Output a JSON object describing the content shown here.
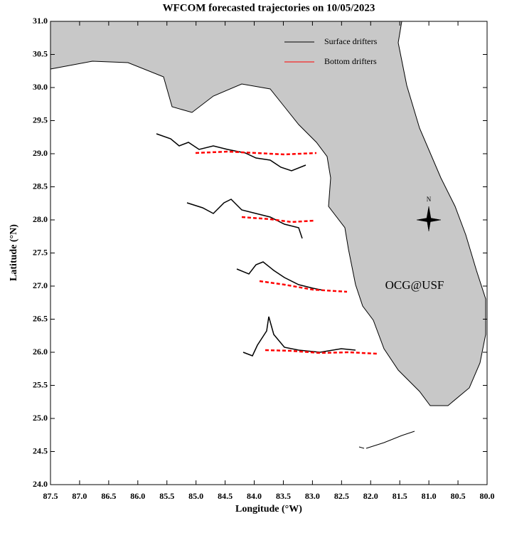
{
  "chart_data": {
    "type": "map",
    "title": "WFCOM forecasted trajectories on 10/05/2023",
    "x_label": "Longitude (°W)",
    "y_label": "Latitude (°N)",
    "xlim": [
      87.5,
      80.0
    ],
    "xticks": [
      87.5,
      {
        "value": 87,
        "label": "87.0"
      },
      86.5,
      {
        "value": 86,
        "label": "86.0"
      },
      85.5,
      {
        "value": 85,
        "label": "85.0"
      },
      84.5,
      {
        "value": 84,
        "label": "84.0"
      },
      83.5,
      {
        "value": 83,
        "label": "83.0"
      },
      82.5,
      {
        "value": 82,
        "label": "82.0"
      },
      81.5,
      {
        "value": 81,
        "label": "81.0"
      },
      80.5,
      {
        "value": 80,
        "label": "80.0"
      }
    ],
    "ylim": [
      24.0,
      31.0
    ],
    "yticks": [
      {
        "value": 24,
        "label": "24.0"
      },
      24.5,
      {
        "value": 25,
        "label": "25.0"
      },
      25.5,
      {
        "value": 26,
        "label": "26.0"
      },
      26.5,
      {
        "value": 27,
        "label": "27.0"
      },
      27.5,
      {
        "value": 28,
        "label": "28.0"
      },
      28.5,
      {
        "value": 29,
        "label": "29.0"
      },
      29.5,
      {
        "value": 30,
        "label": "30.0"
      },
      30.5,
      {
        "value": 31,
        "label": "31.0"
      }
    ],
    "legend": [
      {
        "name": "Surface drifters",
        "color": "#000000"
      },
      {
        "name": "Bottom drifters",
        "color": "#ff0000"
      }
    ],
    "annotation": "OCG@USF",
    "annotation_color": "#ff0000",
    "compass_label": "N"
  }
}
